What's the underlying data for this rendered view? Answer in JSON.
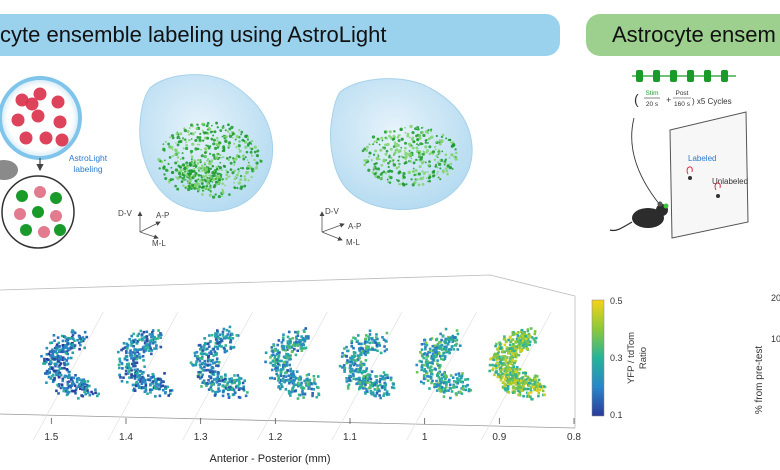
{
  "panel_left": {
    "title": "cyte ensemble labeling using AstroLight"
  },
  "panel_right": {
    "title": "Astrocyte ensem"
  },
  "schematic": {
    "label_line1": "AstroLight",
    "label_line2": "labeling"
  },
  "axes_3d": {
    "left": {
      "dv": "D-V",
      "ap": "A-P",
      "ml": "M-L"
    },
    "right": {
      "dv": "D-V",
      "ap": "A-P",
      "ml": "M-L"
    }
  },
  "protocol": {
    "stim_line1": "Stim",
    "stim_line2": "20 s",
    "plus": "+",
    "post_line1": "Post",
    "post_line2": "160 s",
    "cycles": ") x5 Cycles",
    "open_paren": "(",
    "labeled": "Labeled",
    "unlabeled": "Unlabeled",
    "pulse_count": 6
  },
  "colorbar": {
    "ticks": [
      "0.5",
      "0.3",
      "0.1"
    ],
    "label_line1": "YFP / tdTom",
    "label_line2": "Ratio"
  },
  "right_graph": {
    "ylabel": "% from pre-test",
    "ticks": [
      "20",
      "10"
    ]
  },
  "colors": {
    "green": "#1a9a2a",
    "green_light": "#7fd26b",
    "red": "#d9304a",
    "blue_panel": "#9ad2ee",
    "green_panel": "#9dd08f"
  },
  "chart_data": {
    "type": "scatter",
    "title": "",
    "xlabel": "Anterior - Posterior (mm)",
    "x_ticks": [
      "1.5",
      "1.4",
      "1.3",
      "1.2",
      "1.1",
      "1",
      "0.9",
      "0.8"
    ],
    "xlim": [
      0.8,
      1.55
    ],
    "color_scale": {
      "label": "YFP / tdTom Ratio",
      "range": [
        0.1,
        0.5
      ],
      "ticks": [
        0.5,
        0.3,
        0.1
      ]
    },
    "slices": [
      {
        "ap": 1.5,
        "mean_ratio": 0.2
      },
      {
        "ap": 1.4,
        "mean_ratio": 0.21
      },
      {
        "ap": 1.3,
        "mean_ratio": 0.23
      },
      {
        "ap": 1.2,
        "mean_ratio": 0.25
      },
      {
        "ap": 1.1,
        "mean_ratio": 0.26
      },
      {
        "ap": 1.0,
        "mean_ratio": 0.28
      },
      {
        "ap": 0.9,
        "mean_ratio": 0.38
      }
    ]
  }
}
